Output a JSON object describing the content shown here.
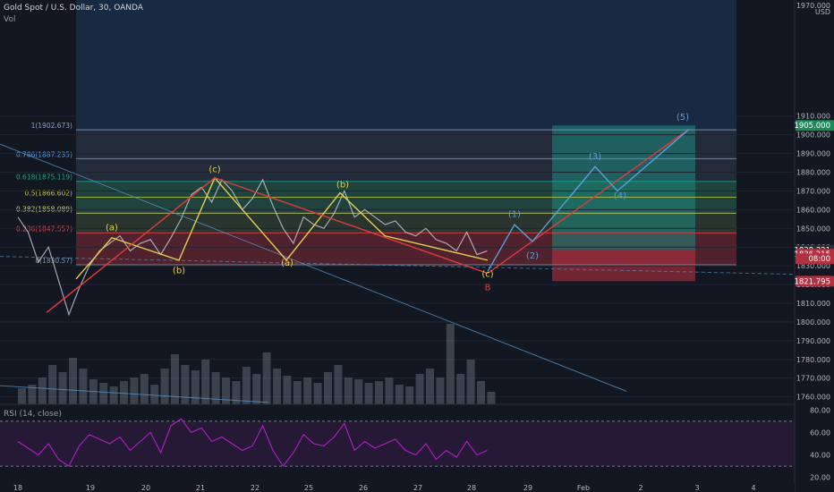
{
  "header": {
    "symbol": "Gold Spot / U.S. Dollar, 30, OANDA",
    "vol_label": "Vol",
    "rsi_label": "RSI (14, close)"
  },
  "colors": {
    "background": "#131722",
    "upper_band": "#1b3a5c",
    "fib_zone_green": "#1f4a3e",
    "fib_zone_red": "#5c2430",
    "price_line": "#d1d4dc",
    "volume": "#8a8fa0",
    "rsi_line": "#b21fc4",
    "rsi_fill": "#2a1a3c",
    "wave_yellow": "#e3d04d",
    "wave_red": "#e23b3b",
    "wave_blue": "#5b9ed6",
    "projection_green": "#1e8a80",
    "projection_red": "#b23040"
  },
  "chart_data": {
    "type": "line",
    "title": "Gold Spot / U.S. Dollar, 30, OANDA",
    "price_axis": {
      "ylim": [
        1756,
        1972
      ],
      "ticks": [
        "1760.000",
        "1770.000",
        "1780.000",
        "1790.000",
        "1800.000",
        "1810.000",
        "1820.000",
        "1830.000",
        "1840.000",
        "1850.000",
        "1860.000",
        "1870.000",
        "1880.000",
        "1890.000",
        "1900.000",
        "1910.000",
        "1970.000"
      ],
      "currency": "USD"
    },
    "rsi_axis": {
      "ylim": [
        15,
        85
      ],
      "ticks": [
        "20.00",
        "40.00",
        "60.00",
        "80.00"
      ],
      "levels": [
        30,
        70
      ]
    },
    "time_axis": {
      "ticks": [
        "18",
        "19",
        "20",
        "21",
        "22",
        "25",
        "26",
        "27",
        "28",
        "29",
        "Feb",
        "2",
        "3",
        "4"
      ]
    },
    "price_tags": [
      {
        "label": "1905.000",
        "value": 1905.0,
        "color": "#1e8a5a"
      },
      {
        "label": "1838.321",
        "value": 1838.321,
        "color": "#2a2e39"
      },
      {
        "label": "1836.215",
        "value": 1836.215,
        "color": "#b23040"
      },
      {
        "label": "08:00",
        "value": 1833.8,
        "color": "#b23040"
      },
      {
        "label": "1821.795",
        "value": 1821.795,
        "color": "#b23040"
      }
    ],
    "fib_levels": [
      {
        "ratio": "1",
        "price": 1902.673,
        "label": "1(1902.673)",
        "color": "#8da1c0"
      },
      {
        "ratio": "0.786",
        "price": 1887.235,
        "label": "0.786(1887.235)",
        "color": "#5ba3e6"
      },
      {
        "ratio": "0.618",
        "price": 1875.119,
        "label": "0.618(1875.119)",
        "color": "#1ea38a"
      },
      {
        "ratio": "0.5",
        "price": 1866.602,
        "label": "0.5(1866.602)",
        "color": "#bcc64a"
      },
      {
        "ratio": "0.382",
        "price": 1858.089,
        "label": "0.382(1858.089)",
        "color": "#c9d26c"
      },
      {
        "ratio": "0.236",
        "price": 1847.557,
        "label": "0.236(1847.557)",
        "color": "#e24a4a"
      },
      {
        "ratio": "0",
        "price": 1830.57,
        "label": "0(1830.57)",
        "color": "#8a8fa0"
      }
    ],
    "price_series": {
      "name": "XAUUSD",
      "x": [
        0,
        0.2,
        0.4,
        0.6,
        0.8,
        1.0,
        1.2,
        1.4,
        1.6,
        1.8,
        2.0,
        2.2,
        2.4,
        2.6,
        2.8,
        3.0,
        3.2,
        3.4,
        3.6,
        3.8,
        4.0,
        4.2,
        4.4,
        4.6,
        4.8,
        5.0,
        5.2,
        5.4,
        5.6,
        5.8,
        6.0,
        6.2,
        6.4,
        6.6,
        6.8,
        7.0,
        7.2,
        7.4,
        7.6,
        7.8,
        8.0,
        8.2,
        8.4,
        8.6,
        8.8,
        9.0,
        9.2
      ],
      "y": [
        1856,
        1848,
        1832,
        1840,
        1822,
        1804,
        1818,
        1830,
        1838,
        1842,
        1846,
        1838,
        1842,
        1844,
        1836,
        1845,
        1855,
        1868,
        1872,
        1864,
        1876,
        1870,
        1860,
        1866,
        1876,
        1862,
        1850,
        1842,
        1856,
        1852,
        1850,
        1858,
        1870,
        1856,
        1860,
        1856,
        1852,
        1854,
        1848,
        1846,
        1850,
        1844,
        1842,
        1838,
        1848,
        1836,
        1838
      ]
    },
    "volume_series": {
      "name": "Vol",
      "x": [
        0,
        0.2,
        0.4,
        0.6,
        0.8,
        1.0,
        1.2,
        1.4,
        1.6,
        1.8,
        2.0,
        2.2,
        2.4,
        2.6,
        2.8,
        3.0,
        3.2,
        3.4,
        3.6,
        3.8,
        4.0,
        4.2,
        4.4,
        4.6,
        4.8,
        5.0,
        5.2,
        5.4,
        5.6,
        5.8,
        6.0,
        6.2,
        6.4,
        6.6,
        6.8,
        7.0,
        7.2,
        7.4,
        7.6,
        7.8,
        8.0,
        8.2,
        8.4,
        8.6,
        8.8,
        9.0,
        9.2
      ],
      "y": [
        18,
        22,
        30,
        44,
        36,
        52,
        40,
        28,
        24,
        20,
        26,
        30,
        34,
        22,
        40,
        56,
        44,
        38,
        50,
        36,
        30,
        26,
        42,
        34,
        58,
        40,
        32,
        26,
        30,
        24,
        36,
        44,
        30,
        28,
        24,
        26,
        30,
        22,
        20,
        34,
        40,
        30,
        90,
        34,
        50,
        26,
        14
      ]
    },
    "rsi_series": {
      "name": "RSI (14, close)",
      "x": [
        0,
        0.2,
        0.4,
        0.6,
        0.8,
        1.0,
        1.2,
        1.4,
        1.6,
        1.8,
        2.0,
        2.2,
        2.4,
        2.6,
        2.8,
        3.0,
        3.2,
        3.4,
        3.6,
        3.8,
        4.0,
        4.2,
        4.4,
        4.6,
        4.8,
        5.0,
        5.2,
        5.4,
        5.6,
        5.8,
        6.0,
        6.2,
        6.4,
        6.6,
        6.8,
        7.0,
        7.2,
        7.4,
        7.6,
        7.8,
        8.0,
        8.2,
        8.4,
        8.6,
        8.8,
        9.0,
        9.2
      ],
      "y": [
        52,
        46,
        40,
        50,
        36,
        30,
        48,
        58,
        54,
        50,
        56,
        44,
        52,
        60,
        42,
        66,
        72,
        60,
        64,
        52,
        56,
        50,
        44,
        48,
        66,
        44,
        30,
        42,
        58,
        50,
        48,
        56,
        68,
        44,
        52,
        46,
        50,
        54,
        44,
        40,
        50,
        36,
        44,
        38,
        52,
        40,
        44
      ]
    },
    "waves": [
      {
        "name": "yellow-1",
        "color": "#e3d04d",
        "points": [
          [
            1.0,
            1823
          ],
          [
            1.8,
            1845
          ],
          [
            2.3,
            1833
          ],
          [
            3.05,
            1877
          ],
          [
            3.75,
            1843
          ],
          [
            4.6,
            1869
          ],
          [
            5.4,
            1846
          ]
        ]
      },
      {
        "name": "red-abc",
        "color": "#e23b3b",
        "points": [
          [
            0.45,
            1805
          ],
          [
            3.05,
            1877
          ],
          [
            5.4,
            1826
          ],
          [
            6.85,
            1903
          ]
        ]
      },
      {
        "name": "yellow-2",
        "color": "#e3d04d",
        "points": [
          [
            3.05,
            1877
          ],
          [
            3.75,
            1843
          ],
          [
            4.6,
            1869
          ],
          [
            5.45,
            1833
          ]
        ]
      },
      {
        "name": "blue-proj",
        "color": "#5b9ed6",
        "points": [
          [
            5.45,
            1827
          ],
          [
            5.75,
            1852
          ],
          [
            6.05,
            1843
          ],
          [
            6.6,
            1883
          ],
          [
            6.9,
            1870
          ],
          [
            7.35,
            1903
          ]
        ]
      }
    ],
    "wave_labels": [
      {
        "text": "(a)",
        "color": "#e3d04d",
        "x": 1.95,
        "y": 1849
      },
      {
        "text": "(b)",
        "color": "#e3d04d",
        "x": 3.22,
        "y": 1830
      },
      {
        "text": "(c)",
        "color": "#e3d04d",
        "x": 3.85,
        "y": 1880
      },
      {
        "text": "(a)",
        "color": "#e3d04d",
        "x": 5.15,
        "y": 1838
      },
      {
        "text": "(b)",
        "color": "#e3d04d",
        "x": 6.12,
        "y": 1872
      },
      {
        "text": "(c)",
        "color": "#e3d04d",
        "x": 8.85,
        "y": 1826
      },
      {
        "text": "B",
        "color": "#e23b3b",
        "x": 8.85,
        "y": 1819
      },
      {
        "text": "(1)",
        "color": "#5b9ed6",
        "x": 9.3,
        "y": 1856
      },
      {
        "text": "(2)",
        "color": "#5b9ed6",
        "x": 9.65,
        "y": 1834
      },
      {
        "text": "(3)",
        "color": "#5b9ed6",
        "x": 10.8,
        "y": 1887
      },
      {
        "text": "(4)",
        "color": "#5b9ed6",
        "x": 11.25,
        "y": 1867
      },
      {
        "text": "(5)",
        "color": "#5b9ed6",
        "x": 12.35,
        "y": 1905
      }
    ],
    "grid": true,
    "legend": "none"
  }
}
